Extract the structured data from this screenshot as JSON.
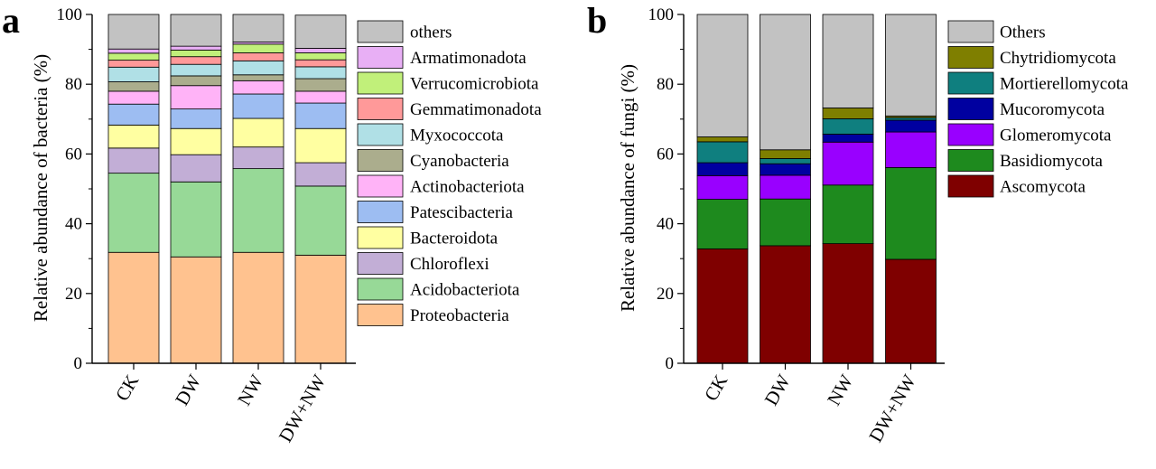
{
  "chart_data": [
    {
      "panel": "a",
      "type": "bar",
      "stacked": true,
      "ylabel": "Relative abundance of bacteria (%)",
      "ylim": [
        0,
        100
      ],
      "yticks": [
        0,
        20,
        40,
        60,
        80,
        100
      ],
      "categories": [
        "CK",
        "DW",
        "NW",
        "DW+NW"
      ],
      "legend_position": "right",
      "series": [
        {
          "name": "Proteobacteria",
          "color": "#FFC28F",
          "values": [
            31.8,
            30.5,
            31.8,
            31.0
          ]
        },
        {
          "name": "Acidobacteriota",
          "color": "#97D997",
          "values": [
            22.7,
            21.5,
            24.0,
            19.8
          ]
        },
        {
          "name": "Chloroflexi",
          "color": "#C2AED6",
          "values": [
            7.2,
            7.8,
            6.2,
            6.7
          ]
        },
        {
          "name": "Bacteroidota",
          "color": "#FFFFA1",
          "values": [
            6.6,
            7.5,
            8.2,
            9.8
          ]
        },
        {
          "name": "Patescibacteria",
          "color": "#9DBDF2",
          "values": [
            6.0,
            5.6,
            7.0,
            7.3
          ]
        },
        {
          "name": "Actinobacteriota",
          "color": "#FFB3F7",
          "values": [
            3.7,
            6.7,
            3.8,
            3.4
          ]
        },
        {
          "name": "Cyanobacteria",
          "color": "#ABAD8D",
          "values": [
            2.7,
            2.8,
            1.7,
            3.6
          ]
        },
        {
          "name": "Myxococcota",
          "color": "#B0E0E6",
          "values": [
            4.2,
            3.3,
            4.0,
            3.4
          ]
        },
        {
          "name": "Gemmatimonadota",
          "color": "#FF9999",
          "values": [
            2.0,
            2.2,
            2.3,
            2.0
          ]
        },
        {
          "name": "Verrucomicrobiota",
          "color": "#C1F07A",
          "values": [
            2.0,
            1.9,
            2.5,
            2.0
          ]
        },
        {
          "name": "Armatimonadota",
          "color": "#E8AFF5",
          "values": [
            1.2,
            1.1,
            0.6,
            1.3
          ]
        },
        {
          "name": "others",
          "color": "#C2C2C2",
          "values": [
            9.9,
            9.1,
            7.9,
            9.5
          ]
        }
      ]
    },
    {
      "panel": "b",
      "type": "bar",
      "stacked": true,
      "ylabel": "Relative abundance of fungi (%)",
      "ylim": [
        0,
        100
      ],
      "yticks": [
        0,
        20,
        40,
        60,
        80,
        100
      ],
      "categories": [
        "CK",
        "DW",
        "NW",
        "DW+NW"
      ],
      "legend_position": "right",
      "series": [
        {
          "name": "Ascomycota",
          "color": "#7F0000",
          "values": [
            32.8,
            33.7,
            34.3,
            29.8
          ]
        },
        {
          "name": "Basidiomycota",
          "color": "#1E8A1E",
          "values": [
            14.2,
            13.4,
            16.8,
            26.3
          ]
        },
        {
          "name": "Glomeromycota",
          "color": "#9900FF",
          "values": [
            6.8,
            6.8,
            12.3,
            10.2
          ]
        },
        {
          "name": "Mucoromycota",
          "color": "#0000A0",
          "values": [
            3.7,
            3.3,
            2.3,
            3.4
          ]
        },
        {
          "name": "Mortierellomycota",
          "color": "#0F7F7F",
          "values": [
            6.0,
            1.5,
            4.4,
            0.7
          ]
        },
        {
          "name": "Chytridiomycota",
          "color": "#7F7F00",
          "values": [
            1.4,
            2.5,
            3.1,
            0.5
          ]
        },
        {
          "name": "Others",
          "color": "#C2C2C2",
          "values": [
            35.1,
            38.8,
            26.8,
            29.1
          ]
        }
      ]
    }
  ]
}
